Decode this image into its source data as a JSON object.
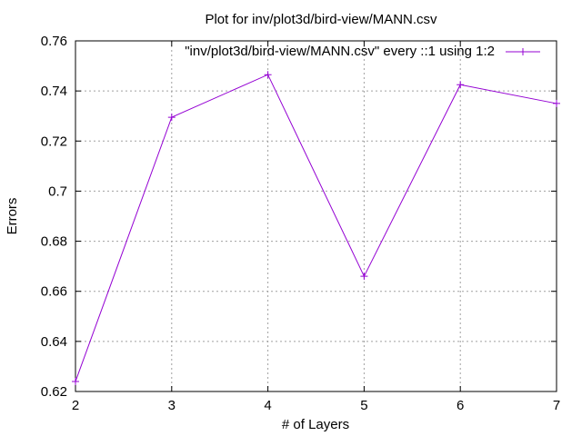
{
  "chart_data": {
    "type": "line",
    "title": "Plot for inv/plot3d/bird-view/MANN.csv",
    "xlabel": "# of Layers",
    "ylabel": "Errors",
    "xlim": [
      2,
      7
    ],
    "ylim": [
      0.62,
      0.76
    ],
    "x_ticks": [
      "2",
      "3",
      "4",
      "5",
      "6",
      "7"
    ],
    "y_ticks": [
      "0.62",
      "0.64",
      "0.66",
      "0.68",
      "0.7",
      "0.72",
      "0.74",
      "0.76"
    ],
    "grid": true,
    "legend_position": "top-right",
    "series": [
      {
        "name": "\"inv/plot3d/bird-view/MANN.csv\" every ::1 using 1:2",
        "color": "#9400d3",
        "marker": "plus",
        "x": [
          2,
          3,
          4,
          5,
          6,
          7
        ],
        "y": [
          0.624,
          0.7295,
          0.7465,
          0.666,
          0.7425,
          0.735
        ]
      }
    ]
  }
}
